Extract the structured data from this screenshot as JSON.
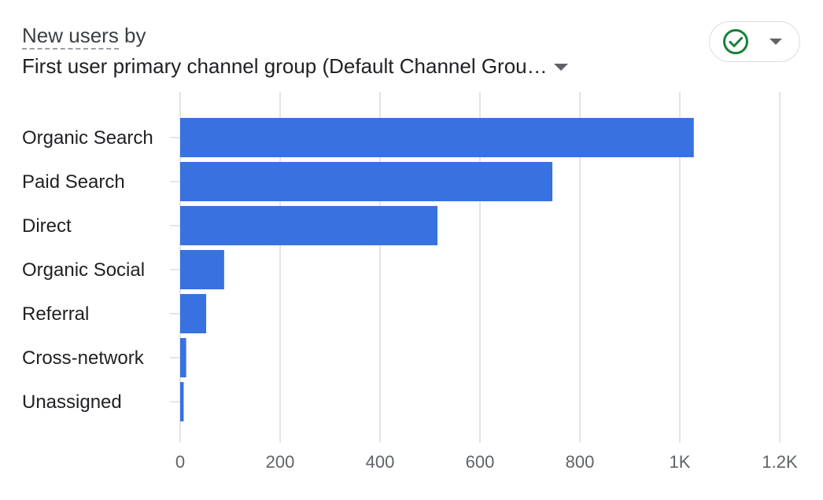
{
  "header": {
    "metric_label": "New users",
    "by_label": " by",
    "dimension_label": "First user primary channel group (Default Channel Grou…"
  },
  "status": {
    "icon": "check-circle-icon",
    "color": "#188038"
  },
  "chart_data": {
    "type": "bar",
    "orientation": "horizontal",
    "categories": [
      "Organic Search",
      "Paid Search",
      "Direct",
      "Organic Social",
      "Referral",
      "Cross-network",
      "Unassigned"
    ],
    "values": [
      1028,
      745,
      515,
      88,
      52,
      12,
      7
    ],
    "xlim": [
      0,
      1200
    ],
    "xticks": [
      0,
      200,
      400,
      600,
      800,
      1000,
      1200
    ],
    "xtick_labels": [
      "0",
      "200",
      "400",
      "600",
      "800",
      "1K",
      "1.2K"
    ],
    "grid": true,
    "bar_color": "#3871e0",
    "title": "New users by First user primary channel group (Default Channel Grou…"
  }
}
